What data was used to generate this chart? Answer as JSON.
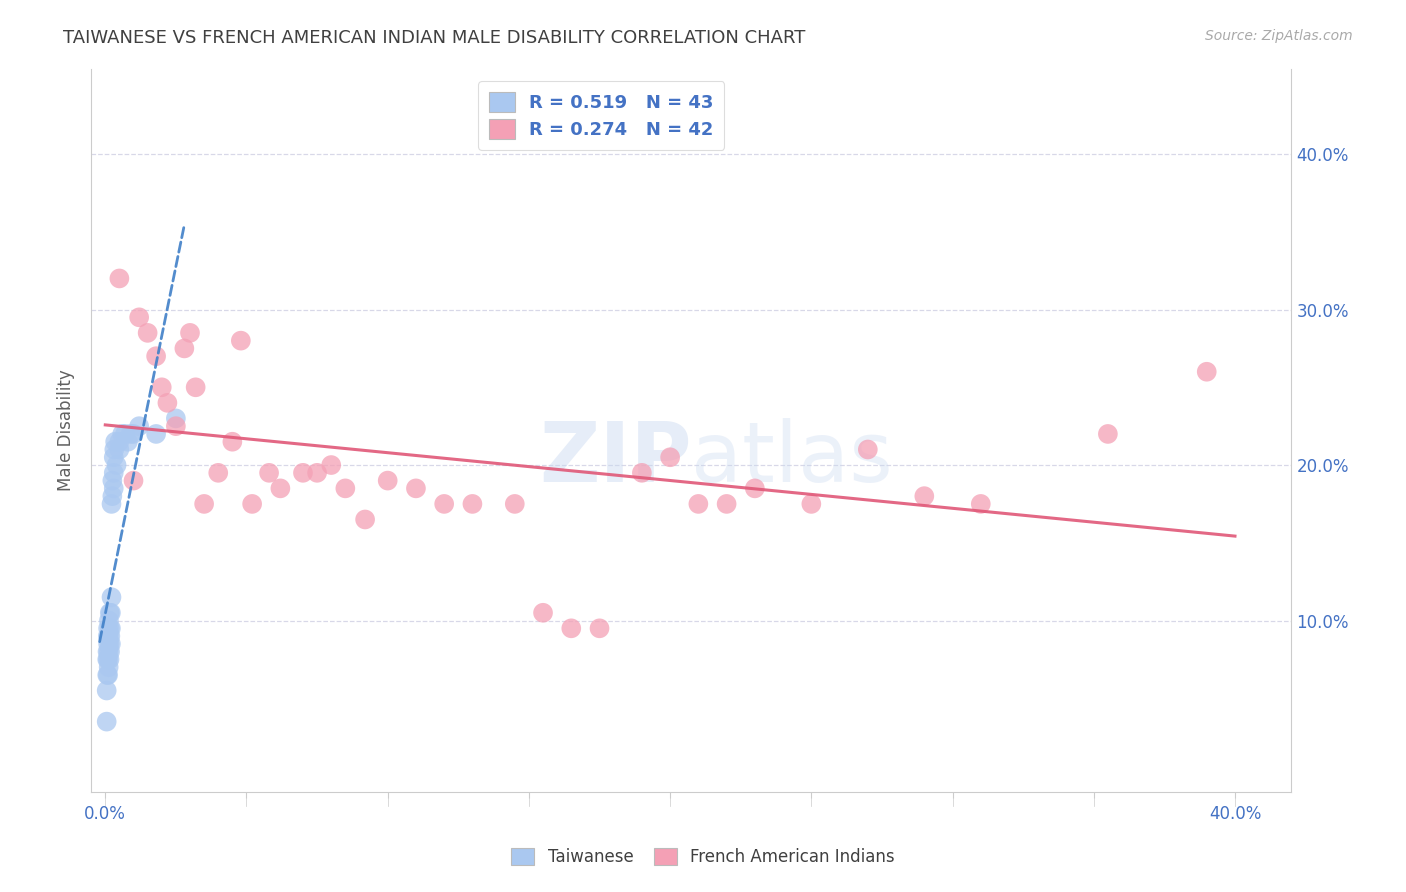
{
  "title": "TAIWANESE VS FRENCH AMERICAN INDIAN MALE DISABILITY CORRELATION CHART",
  "source": "Source: ZipAtlas.com",
  "ylabel": "Male Disability",
  "xlim": [
    -0.005,
    0.42
  ],
  "ylim": [
    -0.01,
    0.455
  ],
  "watermark": "ZIPatlas",
  "legend_r1": "R = 0.519",
  "legend_n1": "N = 43",
  "legend_r2": "R = 0.274",
  "legend_n2": "N = 42",
  "blue_color": "#aac8f0",
  "pink_color": "#f4a0b5",
  "blue_line_color": "#4080c8",
  "pink_line_color": "#e05878",
  "title_color": "#404040",
  "axis_label_color": "#4472c4",
  "ylabel_color": "#606060",
  "grid_color": "#d8d8e8",
  "taiwanese_x": [
    0.0005,
    0.0005,
    0.0007,
    0.0007,
    0.0008,
    0.0009,
    0.001,
    0.001,
    0.001,
    0.001,
    0.0012,
    0.0012,
    0.0013,
    0.0013,
    0.0015,
    0.0015,
    0.0016,
    0.0016,
    0.0017,
    0.0018,
    0.002,
    0.002,
    0.002,
    0.0022,
    0.0022,
    0.0025,
    0.0025,
    0.003,
    0.003,
    0.003,
    0.0032,
    0.0035,
    0.004,
    0.005,
    0.005,
    0.006,
    0.007,
    0.008,
    0.009,
    0.01,
    0.012,
    0.018,
    0.025
  ],
  "taiwanese_y": [
    0.035,
    0.055,
    0.065,
    0.075,
    0.08,
    0.09,
    0.065,
    0.075,
    0.085,
    0.095,
    0.07,
    0.08,
    0.09,
    0.1,
    0.075,
    0.085,
    0.095,
    0.105,
    0.08,
    0.09,
    0.085,
    0.095,
    0.105,
    0.115,
    0.175,
    0.18,
    0.19,
    0.185,
    0.195,
    0.205,
    0.21,
    0.215,
    0.2,
    0.21,
    0.215,
    0.22,
    0.22,
    0.215,
    0.22,
    0.22,
    0.225,
    0.22,
    0.23
  ],
  "french_ai_x": [
    0.005,
    0.01,
    0.012,
    0.015,
    0.018,
    0.02,
    0.022,
    0.025,
    0.028,
    0.03,
    0.032,
    0.035,
    0.04,
    0.045,
    0.048,
    0.052,
    0.058,
    0.062,
    0.07,
    0.075,
    0.08,
    0.085,
    0.092,
    0.1,
    0.11,
    0.12,
    0.13,
    0.145,
    0.155,
    0.165,
    0.175,
    0.19,
    0.2,
    0.21,
    0.22,
    0.23,
    0.25,
    0.27,
    0.29,
    0.31,
    0.355,
    0.39
  ],
  "french_ai_y": [
    0.32,
    0.19,
    0.295,
    0.285,
    0.27,
    0.25,
    0.24,
    0.225,
    0.275,
    0.285,
    0.25,
    0.175,
    0.195,
    0.215,
    0.28,
    0.175,
    0.195,
    0.185,
    0.195,
    0.195,
    0.2,
    0.185,
    0.165,
    0.19,
    0.185,
    0.175,
    0.175,
    0.175,
    0.105,
    0.095,
    0.095,
    0.195,
    0.205,
    0.175,
    0.175,
    0.185,
    0.175,
    0.21,
    0.18,
    0.175,
    0.22,
    0.26
  ]
}
